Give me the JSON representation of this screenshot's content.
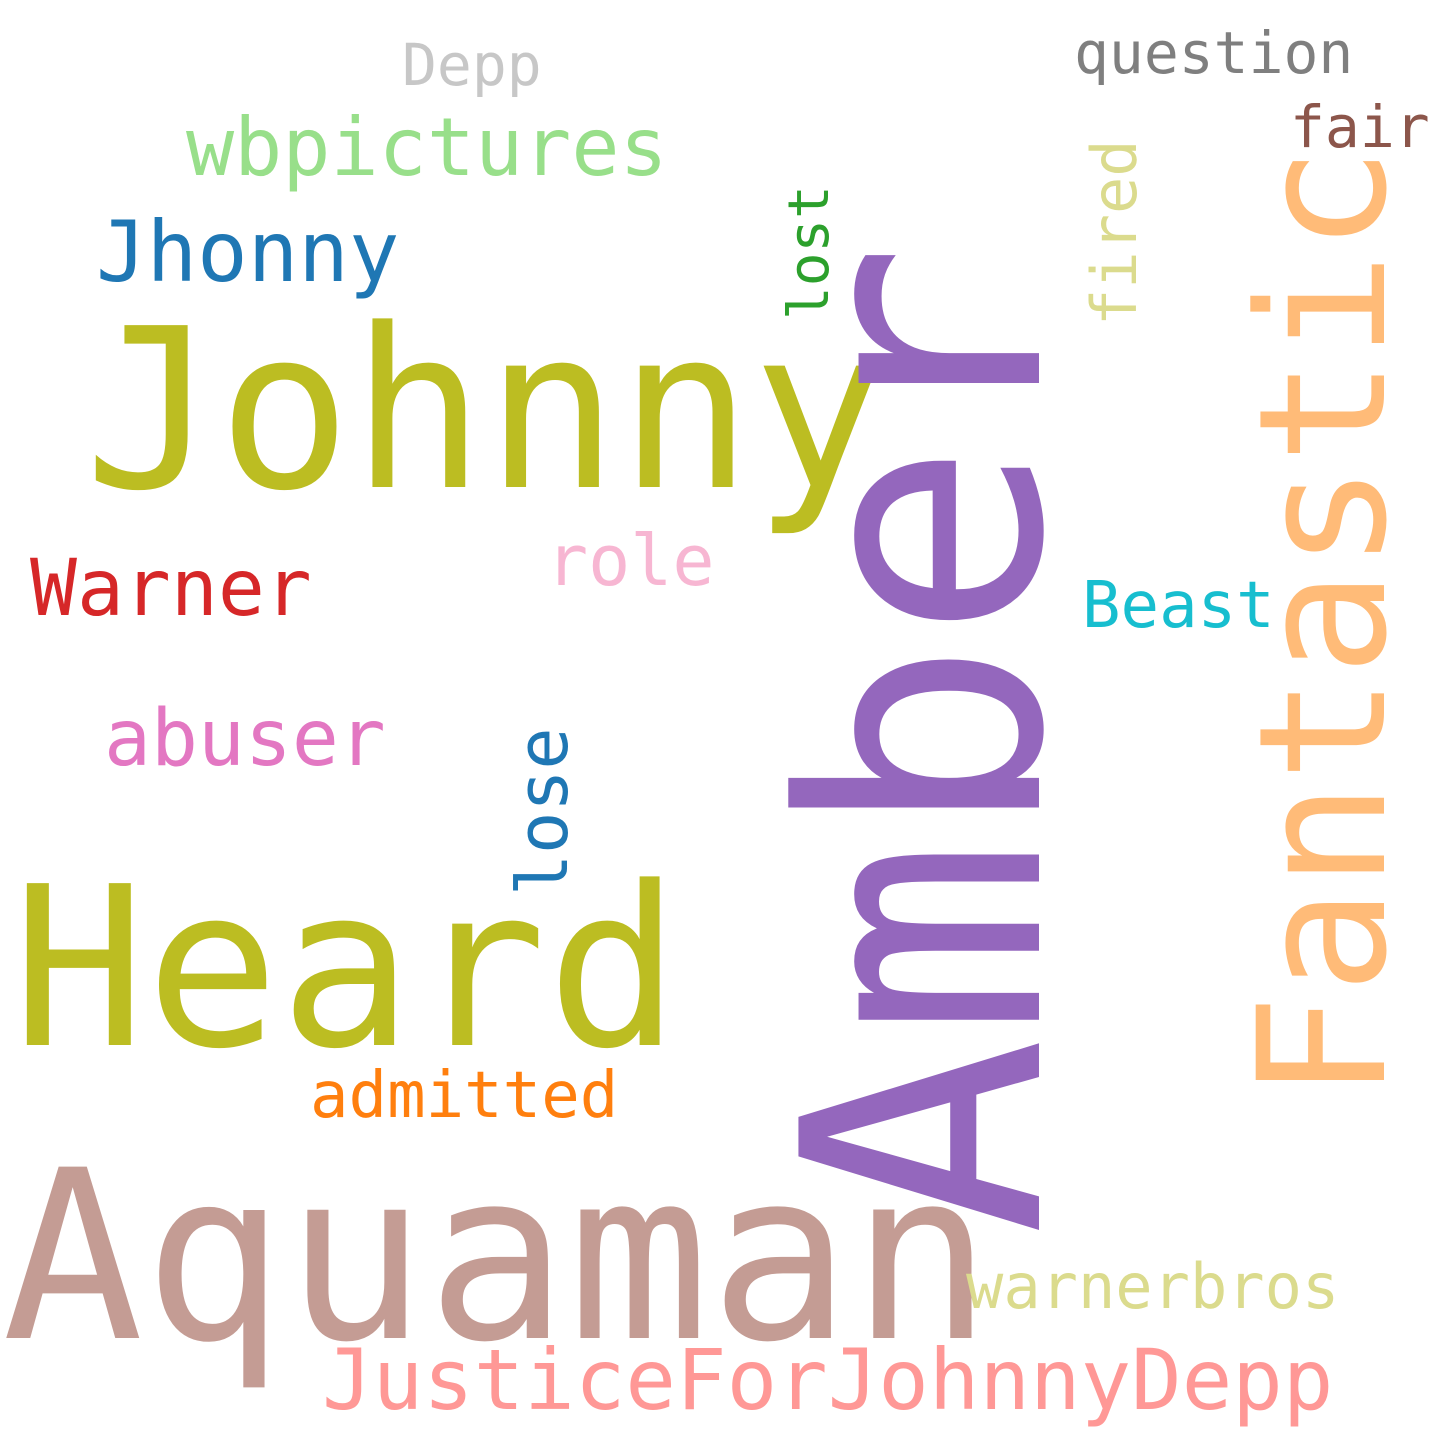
{
  "words": {
    "amber": {
      "text": "Amber",
      "color": "#9467bd"
    },
    "johnny": {
      "text": "Johnny",
      "color": "#bcbd22"
    },
    "heard": {
      "text": "Heard",
      "color": "#bcbd22"
    },
    "aquaman": {
      "text": "Aquaman",
      "color": "#c49c94"
    },
    "fantastic": {
      "text": "Fantastic",
      "color": "#ffbb78"
    },
    "justicefor": {
      "text": "JusticeForJohnnyDepp",
      "color": "#ff9896"
    },
    "jhonny": {
      "text": "Jhonny",
      "color": "#1f77b4"
    },
    "wbpictures": {
      "text": "wbpictures",
      "color": "#98df8a"
    },
    "depp": {
      "text": "Depp",
      "color": "#c7c7c7"
    },
    "question": {
      "text": "question",
      "color": "#7f7f7f"
    },
    "fair": {
      "text": "fair",
      "color": "#8c564b"
    },
    "fired": {
      "text": "fired",
      "color": "#dbdb8d"
    },
    "lost": {
      "text": "lost",
      "color": "#2ca02c"
    },
    "warner": {
      "text": "Warner",
      "color": "#d62728"
    },
    "role": {
      "text": "role",
      "color": "#f7b6d2"
    },
    "beast": {
      "text": "Beast",
      "color": "#17becf"
    },
    "abuser": {
      "text": "abuser",
      "color": "#e377c2"
    },
    "lose": {
      "text": "lose",
      "color": "#1f77b4"
    },
    "admitted": {
      "text": "admitted",
      "color": "#ff7f0e"
    },
    "warnerbros": {
      "text": "warnerbros",
      "color": "#dbdb8d"
    }
  }
}
